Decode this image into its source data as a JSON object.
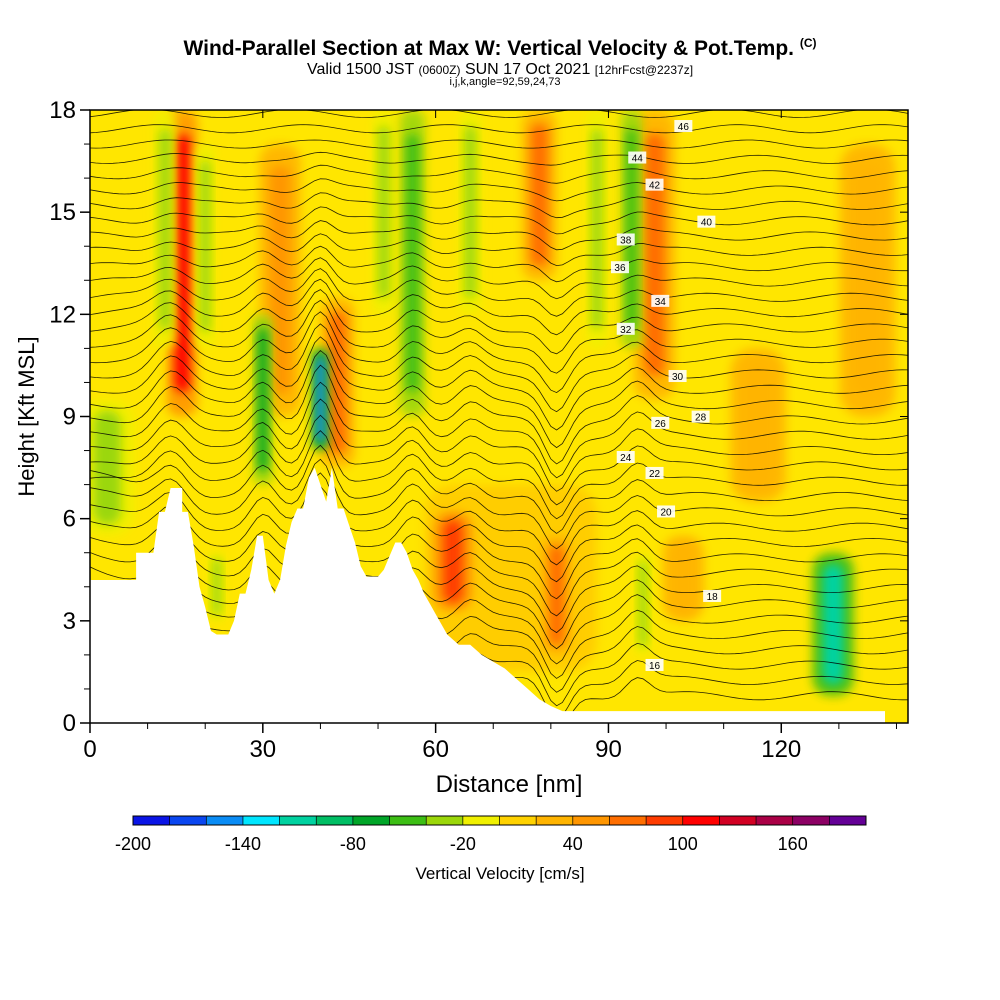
{
  "header": {
    "title": "Wind-Parallel Section at Max W: Vertical Velocity & Pot.Temp.",
    "title_mark": "(C)",
    "sub_prefix": "Valid 1500 JST",
    "sub_utc": "(0600Z)",
    "sub_date": "SUN 17 Oct 2021",
    "sub_fcst": "[12hrFcst@2237z]",
    "params": "i,j,k,angle=92,59,24,73"
  },
  "chart_data": {
    "type": "heatmap",
    "xlabel": "Distance [nm]",
    "ylabel": "Height [Kft MSL]",
    "xlim": [
      0,
      142
    ],
    "ylim": [
      0,
      18
    ],
    "x_ticks": [
      0,
      30,
      60,
      90,
      120
    ],
    "y_ticks": [
      0,
      3,
      6,
      9,
      12,
      15,
      18
    ],
    "colorbar": {
      "label": "Vertical Velocity [cm/s]",
      "tick_values": [
        -200,
        -140,
        -80,
        -20,
        40,
        100,
        160
      ],
      "colors": [
        "#0a14e6",
        "#0a46f0",
        "#0a8cf5",
        "#00e6ff",
        "#00d2a0",
        "#00be64",
        "#00a528",
        "#3cbe14",
        "#9bd70a",
        "#f0f000",
        "#ffd200",
        "#ffb400",
        "#ff9600",
        "#ff6e00",
        "#ff3c00",
        "#ff0000",
        "#d20023",
        "#aa0046",
        "#8c0064",
        "#640096"
      ]
    },
    "terrain": [
      [
        0,
        4.2
      ],
      [
        8,
        4.2
      ],
      [
        8,
        5
      ],
      [
        11,
        5
      ],
      [
        12,
        6.2
      ],
      [
        13,
        6.2
      ],
      [
        14,
        6.9
      ],
      [
        16,
        6.9
      ],
      [
        16,
        6.2
      ],
      [
        17,
        6.2
      ],
      [
        18,
        5.2
      ],
      [
        19,
        4
      ],
      [
        20,
        3.4
      ],
      [
        21,
        2.7
      ],
      [
        22,
        2.6
      ],
      [
        24,
        2.6
      ],
      [
        25,
        3
      ],
      [
        26,
        3.8
      ],
      [
        27,
        3.8
      ],
      [
        28,
        4.5
      ],
      [
        29,
        5.5
      ],
      [
        30,
        5.5
      ],
      [
        31,
        4.2
      ],
      [
        32,
        3.8
      ],
      [
        33,
        4.2
      ],
      [
        34,
        5.2
      ],
      [
        35,
        5.9
      ],
      [
        36,
        6.3
      ],
      [
        37,
        6.3
      ],
      [
        38,
        7.2
      ],
      [
        39,
        7.5
      ],
      [
        40,
        7
      ],
      [
        41,
        6.5
      ],
      [
        42,
        7.5
      ],
      [
        43,
        6.3
      ],
      [
        44,
        6.3
      ],
      [
        45,
        5.8
      ],
      [
        46,
        5.3
      ],
      [
        47,
        4.6
      ],
      [
        48,
        4.3
      ],
      [
        50,
        4.3
      ],
      [
        51,
        4.5
      ],
      [
        52,
        4.9
      ],
      [
        53,
        5.3
      ],
      [
        54,
        5.3
      ],
      [
        55,
        5
      ],
      [
        56,
        4.5
      ],
      [
        57,
        4.2
      ],
      [
        58,
        3.8
      ],
      [
        59,
        3.5
      ],
      [
        60,
        3.2
      ],
      [
        61,
        2.9
      ],
      [
        62,
        2.6
      ],
      [
        64,
        2.3
      ],
      [
        66,
        2.3
      ],
      [
        68,
        2
      ],
      [
        70,
        1.8
      ],
      [
        72,
        1.6
      ],
      [
        74,
        1.3
      ],
      [
        76,
        1
      ],
      [
        78,
        0.7
      ],
      [
        80,
        0.5
      ],
      [
        82,
        0.35
      ],
      [
        90,
        0.35
      ],
      [
        106,
        0.35
      ],
      [
        124,
        0.35
      ],
      [
        136,
        0.35
      ],
      [
        138,
        0.35
      ],
      [
        138,
        0
      ],
      [
        142,
        0
      ]
    ],
    "updrafts": [
      {
        "x": 16,
        "bottom": 9,
        "top": 18,
        "w": 2.2,
        "value": 100
      },
      {
        "x": 33,
        "bottom": 9,
        "top": 17,
        "w": 3,
        "value": 50
      },
      {
        "x": 43,
        "bottom": 7.5,
        "top": 12.5,
        "w": 2.5,
        "value": 75
      },
      {
        "x": 63,
        "bottom": 3.3,
        "top": 6.2,
        "w": 2.8,
        "value": 85
      },
      {
        "x": 81,
        "bottom": 2,
        "top": 5.5,
        "w": 2.2,
        "value": 70
      },
      {
        "x": 78,
        "bottom": 13,
        "top": 18,
        "w": 2.5,
        "value": 60
      },
      {
        "x": 98,
        "bottom": 9.5,
        "top": 18,
        "w": 3,
        "value": 65
      },
      {
        "x": 103,
        "bottom": 3,
        "top": 5.5,
        "w": 3,
        "value": 35
      },
      {
        "x": 116,
        "bottom": 6.5,
        "top": 11,
        "w": 4,
        "value": 30
      },
      {
        "x": 135,
        "bottom": 9,
        "top": 17,
        "w": 4,
        "value": 28
      }
    ],
    "downdrafts": [
      {
        "x": 13,
        "bottom": 11,
        "top": 18,
        "w": 1.6,
        "value": -40
      },
      {
        "x": 20,
        "bottom": 11,
        "top": 17,
        "w": 1.4,
        "value": -30
      },
      {
        "x": 30,
        "bottom": 7,
        "top": 12,
        "w": 1.4,
        "value": -65
      },
      {
        "x": 40,
        "bottom": 8,
        "top": 11,
        "w": 1.2,
        "value": -150
      },
      {
        "x": 51,
        "bottom": 12,
        "top": 18,
        "w": 1.6,
        "value": -35
      },
      {
        "x": 56,
        "bottom": 9,
        "top": 18,
        "w": 1.8,
        "value": -45
      },
      {
        "x": 66,
        "bottom": 12,
        "top": 18,
        "w": 1.6,
        "value": -40
      },
      {
        "x": 88,
        "bottom": 11,
        "top": 18,
        "w": 1.5,
        "value": -30
      },
      {
        "x": 94,
        "bottom": 11,
        "top": 18,
        "w": 1.5,
        "value": -45
      },
      {
        "x": 96,
        "bottom": 2,
        "top": 5,
        "w": 1.2,
        "value": -40
      },
      {
        "x": 3,
        "bottom": 5.5,
        "top": 9.5,
        "w": 4,
        "value": -40
      },
      {
        "x": 22,
        "bottom": 3,
        "top": 5,
        "w": 1.2,
        "value": -35
      },
      {
        "x": 129,
        "bottom": 0.8,
        "top": 5,
        "w": 3,
        "value": -110
      }
    ],
    "isentropes": [
      {
        "label": "16",
        "base": 1.4,
        "label_x": 98
      },
      {
        "label": "18",
        "base": 3.8,
        "label_x": 108
      },
      {
        "label": "20",
        "base": 6.2,
        "label_x": 100
      },
      {
        "label": "22",
        "base": 7.1,
        "label_x": 98
      },
      {
        "label": "24",
        "base": 7.5,
        "label_x": 93
      },
      {
        "label": "26",
        "base": 8.6,
        "label_x": 99
      },
      {
        "label": "28",
        "base": 9.1,
        "label_x": 106
      },
      {
        "label": "30",
        "base": 10.3,
        "label_x": 102
      },
      {
        "label": "32",
        "base": 11.3,
        "label_x": 93
      },
      {
        "label": "34",
        "base": 12.4,
        "label_x": 99
      },
      {
        "label": "36",
        "base": 13.4,
        "label_x": 92
      },
      {
        "label": "38",
        "base": 14.1,
        "label_x": 93
      },
      {
        "label": "40",
        "base": 14.8,
        "label_x": 107
      },
      {
        "label": "42",
        "base": 15.7,
        "label_x": 98
      },
      {
        "label": "44",
        "base": 16.5,
        "label_x": 95
      },
      {
        "label": "46",
        "base": 17.6,
        "label_x": 103
      }
    ]
  }
}
